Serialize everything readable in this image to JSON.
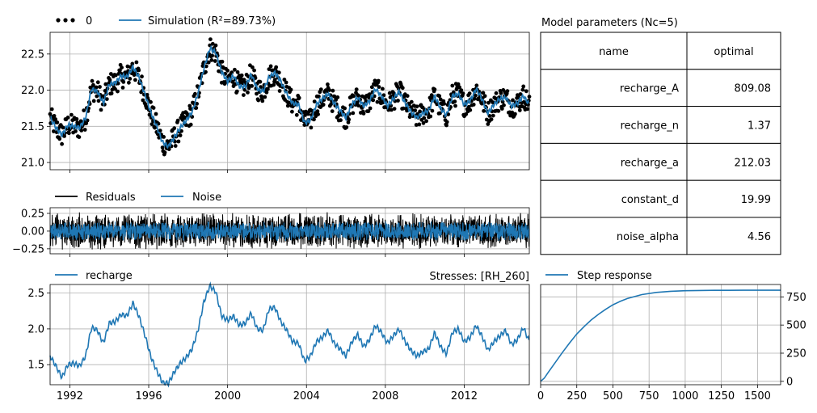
{
  "colors": {
    "simulation": "#1f77b4",
    "observed": "#000000",
    "residuals": "#000000",
    "noise": "#1f77b4",
    "recharge": "#1f77b4",
    "step": "#1f77b4"
  },
  "legends": {
    "observed_label": "0",
    "simulation_label": "Simulation (R²=89.73%)",
    "residuals_label": "Residuals",
    "noise_label": "Noise",
    "recharge_label": "recharge",
    "stresses_title": "Stresses: [RH_260]",
    "step_label": "Step response"
  },
  "table": {
    "title": "Model parameters (Nc=5)",
    "headers": [
      "name",
      "optimal"
    ],
    "rows": [
      [
        "recharge_A",
        "809.08"
      ],
      [
        "recharge_n",
        "1.37"
      ],
      [
        "recharge_a",
        "212.03"
      ],
      [
        "constant_d",
        "19.99"
      ],
      [
        "noise_alpha",
        "4.56"
      ]
    ]
  },
  "chart_data": [
    {
      "type": "line",
      "panel": "head",
      "xlim": [
        1991,
        2015.3
      ],
      "ylim": [
        20.9,
        22.8
      ],
      "yticks": [
        "21.0",
        "21.5",
        "22.0",
        "22.5"
      ],
      "ytick_values": [
        21.0,
        21.5,
        22.0,
        22.5
      ],
      "series": [
        {
          "name": "Simulation (R²=89.73%)",
          "x": [
            1991.0,
            1991.3,
            1991.6,
            1991.9,
            1992.2,
            1992.5,
            1992.8,
            1993.1,
            1993.4,
            1993.7,
            1994.0,
            1994.3,
            1994.6,
            1994.9,
            1995.2,
            1995.5,
            1995.8,
            1996.1,
            1996.4,
            1996.7,
            1997.0,
            1997.3,
            1997.6,
            1997.9,
            1998.2,
            1998.5,
            1998.8,
            1999.1,
            1999.4,
            1999.7,
            2000.0,
            2000.3,
            2000.6,
            2000.9,
            2001.2,
            2001.5,
            2001.8,
            2002.1,
            2002.4,
            2002.7,
            2003.0,
            2003.3,
            2003.6,
            2003.9,
            2004.2,
            2004.5,
            2004.8,
            2005.1,
            2005.4,
            2005.7,
            2006.0,
            2006.3,
            2006.6,
            2006.9,
            2007.2,
            2007.5,
            2007.8,
            2008.1,
            2008.4,
            2008.7,
            2009.0,
            2009.3,
            2009.6,
            2009.9,
            2010.2,
            2010.5,
            2010.8,
            2011.1,
            2011.4,
            2011.7,
            2012.0,
            2012.3,
            2012.6,
            2012.9,
            2013.2,
            2013.5,
            2013.8,
            2014.1,
            2014.4,
            2014.7,
            2015.0,
            2015.3
          ],
          "values": [
            21.62,
            21.48,
            21.38,
            21.52,
            21.5,
            21.48,
            21.62,
            22.02,
            21.98,
            21.82,
            22.08,
            22.1,
            22.2,
            22.18,
            22.32,
            22.18,
            21.95,
            21.7,
            21.5,
            21.28,
            21.22,
            21.35,
            21.48,
            21.58,
            21.7,
            21.95,
            22.3,
            22.58,
            22.52,
            22.25,
            22.12,
            22.2,
            22.05,
            22.05,
            22.22,
            22.02,
            21.98,
            22.18,
            22.24,
            22.12,
            21.95,
            21.82,
            21.8,
            21.55,
            21.58,
            21.8,
            21.88,
            21.95,
            21.82,
            21.72,
            21.62,
            21.8,
            21.9,
            21.78,
            21.85,
            22.02,
            21.92,
            21.78,
            21.88,
            21.98,
            21.82,
            21.7,
            21.62,
            21.68,
            21.72,
            21.92,
            21.75,
            21.65,
            21.92,
            21.95,
            21.8,
            21.85,
            22.02,
            21.88,
            21.68,
            21.8,
            21.88,
            21.9,
            21.78,
            21.82,
            21.92,
            21.8
          ]
        }
      ]
    },
    {
      "type": "line",
      "panel": "residuals",
      "xlim": [
        1991,
        2015.3
      ],
      "ylim": [
        -0.32,
        0.33
      ],
      "yticks": [
        "−0.25",
        "0.00",
        "0.25"
      ],
      "ytick_values": [
        -0.25,
        0.0,
        0.25
      ],
      "series": [
        {
          "name": "Residuals",
          "amplitude": 0.27
        },
        {
          "name": "Noise",
          "amplitude": 0.14
        }
      ]
    },
    {
      "type": "line",
      "panel": "stresses",
      "xlim": [
        1991,
        2015.3
      ],
      "ylim": [
        1.22,
        2.62
      ],
      "yticks": [
        "1.5",
        "2.0",
        "2.5"
      ],
      "ytick_values": [
        1.5,
        2.0,
        2.5
      ],
      "xticks": [
        "1992",
        "1996",
        "2000",
        "2004",
        "2008",
        "2012"
      ],
      "xtick_values": [
        1992,
        1996,
        2000,
        2004,
        2008,
        2012
      ],
      "series": [
        {
          "name": "recharge",
          "x": [
            1991.0,
            1991.3,
            1991.6,
            1991.9,
            1992.2,
            1992.5,
            1992.8,
            1993.1,
            1993.4,
            1993.7,
            1994.0,
            1994.3,
            1994.6,
            1994.9,
            1995.2,
            1995.5,
            1995.8,
            1996.1,
            1996.4,
            1996.7,
            1997.0,
            1997.3,
            1997.6,
            1997.9,
            1998.2,
            1998.5,
            1998.8,
            1999.1,
            1999.4,
            1999.7,
            2000.0,
            2000.3,
            2000.6,
            2000.9,
            2001.2,
            2001.5,
            2001.8,
            2002.1,
            2002.4,
            2002.7,
            2003.0,
            2003.3,
            2003.6,
            2003.9,
            2004.2,
            2004.5,
            2004.8,
            2005.1,
            2005.4,
            2005.7,
            2006.0,
            2006.3,
            2006.6,
            2006.9,
            2007.2,
            2007.5,
            2007.8,
            2008.1,
            2008.4,
            2008.7,
            2009.0,
            2009.3,
            2009.6,
            2009.9,
            2010.2,
            2010.5,
            2010.8,
            2011.1,
            2011.4,
            2011.7,
            2012.0,
            2012.3,
            2012.6,
            2012.9,
            2013.2,
            2013.5,
            2013.8,
            2014.1,
            2014.4,
            2014.7,
            2015.0,
            2015.3
          ],
          "values": [
            1.62,
            1.48,
            1.32,
            1.5,
            1.52,
            1.48,
            1.62,
            2.02,
            1.98,
            1.8,
            2.08,
            2.1,
            2.2,
            2.18,
            2.36,
            2.18,
            1.92,
            1.62,
            1.42,
            1.25,
            1.24,
            1.4,
            1.52,
            1.6,
            1.72,
            1.98,
            2.38,
            2.6,
            2.52,
            2.18,
            2.12,
            2.18,
            2.05,
            2.08,
            2.22,
            2.0,
            1.98,
            2.28,
            2.3,
            2.1,
            1.98,
            1.82,
            1.8,
            1.55,
            1.62,
            1.82,
            1.88,
            1.98,
            1.8,
            1.72,
            1.62,
            1.82,
            1.92,
            1.75,
            1.85,
            2.05,
            1.95,
            1.8,
            1.9,
            2.0,
            1.82,
            1.7,
            1.62,
            1.68,
            1.72,
            1.95,
            1.75,
            1.65,
            1.95,
            2.0,
            1.82,
            1.88,
            2.05,
            1.9,
            1.7,
            1.82,
            1.9,
            1.98,
            1.78,
            1.85,
            2.02,
            1.82
          ]
        }
      ]
    },
    {
      "type": "line",
      "panel": "step_response",
      "xlim": [
        0,
        1660
      ],
      "ylim": [
        -30,
        860
      ],
      "xticks": [
        "0",
        "250",
        "500",
        "750",
        "1000",
        "1250",
        "1500"
      ],
      "xtick_values": [
        0,
        250,
        500,
        750,
        1000,
        1250,
        1500
      ],
      "yticks": [
        "0",
        "250",
        "500",
        "750"
      ],
      "ytick_values": [
        0,
        250,
        500,
        750
      ],
      "series": [
        {
          "name": "Step response",
          "x": [
            0,
            25,
            50,
            100,
            150,
            200,
            250,
            300,
            350,
            400,
            450,
            500,
            550,
            600,
            700,
            800,
            900,
            1000,
            1100,
            1200,
            1300,
            1400,
            1500,
            1660
          ],
          "values": [
            0,
            28,
            75,
            165,
            255,
            340,
            420,
            485,
            545,
            595,
            640,
            680,
            710,
            735,
            770,
            790,
            800,
            805,
            807,
            808,
            808.5,
            809,
            809,
            809
          ]
        }
      ]
    }
  ]
}
